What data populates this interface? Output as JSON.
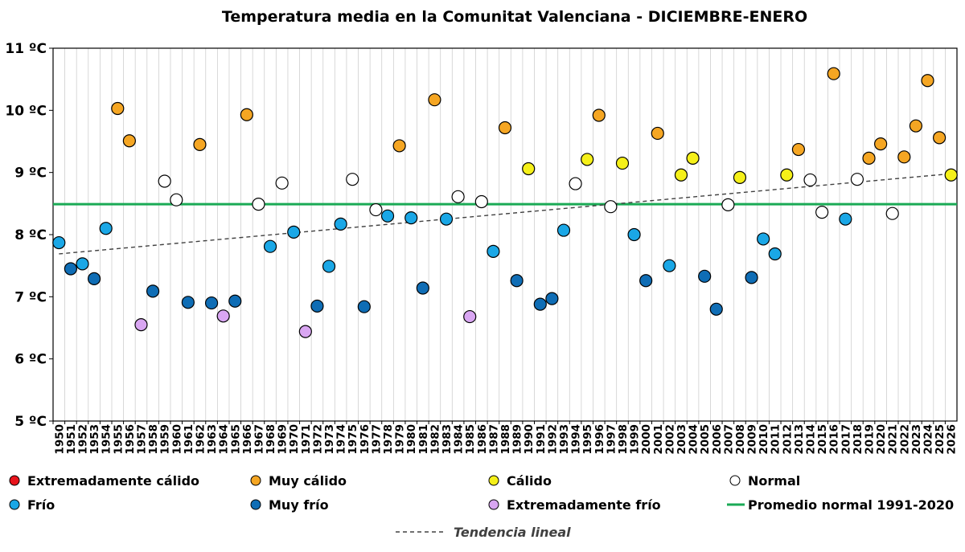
{
  "chart_data": {
    "type": "scatter",
    "title": "Temperatura media en la Comunitat Valenciana - DICIEMBRE-ENERO",
    "xlabel": "",
    "ylabel": "",
    "ylim": [
      5,
      11
    ],
    "y_ticks": [
      {
        "value": 5,
        "label": "5 ºC"
      },
      {
        "value": 6,
        "label": "6 ºC"
      },
      {
        "value": 7,
        "label": "7 ºC"
      },
      {
        "value": 8,
        "label": "8 ºC"
      },
      {
        "value": 9,
        "label": "9 ºC"
      },
      {
        "value": 10,
        "label": "10 ºC"
      },
      {
        "value": 11,
        "label": "11 ºC"
      }
    ],
    "x_labels": [
      "1950",
      "1951",
      "1952",
      "1953",
      "1954",
      "1955",
      "1956",
      "1957",
      "1958",
      "1959",
      "1960",
      "1961",
      "1962",
      "1963",
      "1964",
      "1965",
      "1966",
      "1967",
      "1968",
      "1969",
      "1970",
      "1971",
      "1972",
      "1973",
      "1974",
      "1975",
      "1976",
      "1977",
      "1978",
      "1979",
      "1980",
      "1981",
      "1982",
      "1983",
      "1984",
      "1985",
      "1986",
      "1987",
      "1988",
      "1989",
      "1990",
      "1991",
      "1992",
      "1993",
      "1994",
      "1995",
      "1996",
      "1997",
      "1998",
      "1999",
      "2000",
      "2001",
      "2002",
      "2003",
      "2004",
      "2005",
      "2006",
      "2007",
      "2008",
      "2009",
      "2010",
      "2011",
      "2012",
      "2013",
      "2014",
      "2015",
      "2016",
      "2017",
      "2018",
      "2019",
      "2020",
      "2021",
      "2022",
      "2023",
      "2024",
      "2025",
      "2026"
    ],
    "grid": "vertical",
    "categories": {
      "ext_calido": {
        "label": "Extremadamente cálido",
        "color": "#e8141c"
      },
      "muy_calido": {
        "label": "Muy cálido",
        "color": "#f5a623"
      },
      "calido": {
        "label": "Cálido",
        "color": "#f5f019"
      },
      "normal": {
        "label": "Normal",
        "color": "#ffffff"
      },
      "frio": {
        "label": "Frío",
        "color": "#1aa7e6"
      },
      "muy_frio": {
        "label": "Muy frío",
        "color": "#0f6db5"
      },
      "ext_frio": {
        "label": "Extremadamente frío",
        "color": "#d9a6f2"
      }
    },
    "points": [
      {
        "x": "1950",
        "y": 7.87,
        "cat": "frio"
      },
      {
        "x": "1951",
        "y": 7.45,
        "cat": "muy_frio"
      },
      {
        "x": "1952",
        "y": 7.53,
        "cat": "frio"
      },
      {
        "x": "1953",
        "y": 7.29,
        "cat": "muy_frio"
      },
      {
        "x": "1954",
        "y": 8.1,
        "cat": "frio"
      },
      {
        "x": "1955",
        "y": 10.03,
        "cat": "muy_calido"
      },
      {
        "x": "1956",
        "y": 9.51,
        "cat": "muy_calido"
      },
      {
        "x": "1957",
        "y": 6.55,
        "cat": "ext_frio"
      },
      {
        "x": "1958",
        "y": 7.09,
        "cat": "muy_frio"
      },
      {
        "x": "1959",
        "y": 8.86,
        "cat": "normal"
      },
      {
        "x": "1960",
        "y": 8.56,
        "cat": "normal"
      },
      {
        "x": "1961",
        "y": 6.91,
        "cat": "muy_frio"
      },
      {
        "x": "1962",
        "y": 9.45,
        "cat": "muy_calido"
      },
      {
        "x": "1963",
        "y": 6.9,
        "cat": "muy_frio"
      },
      {
        "x": "1964",
        "y": 6.69,
        "cat": "ext_frio"
      },
      {
        "x": "1965",
        "y": 6.93,
        "cat": "muy_frio"
      },
      {
        "x": "1966",
        "y": 9.93,
        "cat": "muy_calido"
      },
      {
        "x": "1967",
        "y": 8.49,
        "cat": "normal"
      },
      {
        "x": "1968",
        "y": 7.81,
        "cat": "frio"
      },
      {
        "x": "1969",
        "y": 8.83,
        "cat": "normal"
      },
      {
        "x": "1970",
        "y": 8.04,
        "cat": "frio"
      },
      {
        "x": "1971",
        "y": 6.44,
        "cat": "ext_frio"
      },
      {
        "x": "1972",
        "y": 6.85,
        "cat": "muy_frio"
      },
      {
        "x": "1973",
        "y": 7.49,
        "cat": "frio"
      },
      {
        "x": "1974",
        "y": 8.17,
        "cat": "frio"
      },
      {
        "x": "1975",
        "y": 8.89,
        "cat": "normal"
      },
      {
        "x": "1976",
        "y": 6.84,
        "cat": "muy_frio"
      },
      {
        "x": "1977",
        "y": 8.4,
        "cat": "normal"
      },
      {
        "x": "1978",
        "y": 8.3,
        "cat": "frio"
      },
      {
        "x": "1979",
        "y": 9.43,
        "cat": "muy_calido"
      },
      {
        "x": "1980",
        "y": 8.27,
        "cat": "frio"
      },
      {
        "x": "1981",
        "y": 7.14,
        "cat": "muy_frio"
      },
      {
        "x": "1982",
        "y": 10.17,
        "cat": "muy_calido"
      },
      {
        "x": "1983",
        "y": 8.25,
        "cat": "frio"
      },
      {
        "x": "1984",
        "y": 8.61,
        "cat": "normal"
      },
      {
        "x": "1985",
        "y": 6.68,
        "cat": "ext_frio"
      },
      {
        "x": "1986",
        "y": 8.53,
        "cat": "normal"
      },
      {
        "x": "1987",
        "y": 7.73,
        "cat": "frio"
      },
      {
        "x": "1988",
        "y": 9.72,
        "cat": "muy_calido"
      },
      {
        "x": "1989",
        "y": 7.26,
        "cat": "muy_frio"
      },
      {
        "x": "1990",
        "y": 9.06,
        "cat": "calido"
      },
      {
        "x": "1991",
        "y": 6.88,
        "cat": "muy_frio"
      },
      {
        "x": "1992",
        "y": 6.97,
        "cat": "muy_frio"
      },
      {
        "x": "1993",
        "y": 8.07,
        "cat": "frio"
      },
      {
        "x": "1994",
        "y": 8.82,
        "cat": "normal"
      },
      {
        "x": "1995",
        "y": 9.21,
        "cat": "calido"
      },
      {
        "x": "1996",
        "y": 9.92,
        "cat": "muy_calido"
      },
      {
        "x": "1997",
        "y": 8.45,
        "cat": "normal"
      },
      {
        "x": "1998",
        "y": 9.15,
        "cat": "calido"
      },
      {
        "x": "1999",
        "y": 8.0,
        "cat": "frio"
      },
      {
        "x": "2000",
        "y": 7.26,
        "cat": "muy_frio"
      },
      {
        "x": "2001",
        "y": 9.63,
        "cat": "muy_calido"
      },
      {
        "x": "2002",
        "y": 7.5,
        "cat": "frio"
      },
      {
        "x": "2003",
        "y": 8.96,
        "cat": "calido"
      },
      {
        "x": "2004",
        "y": 9.23,
        "cat": "calido"
      },
      {
        "x": "2005",
        "y": 7.33,
        "cat": "muy_frio"
      },
      {
        "x": "2006",
        "y": 6.8,
        "cat": "muy_frio"
      },
      {
        "x": "2007",
        "y": 8.48,
        "cat": "normal"
      },
      {
        "x": "2008",
        "y": 8.92,
        "cat": "calido"
      },
      {
        "x": "2009",
        "y": 7.31,
        "cat": "muy_frio"
      },
      {
        "x": "2010",
        "y": 7.93,
        "cat": "frio"
      },
      {
        "x": "2011",
        "y": 7.69,
        "cat": "frio"
      },
      {
        "x": "2012",
        "y": 8.96,
        "cat": "calido"
      },
      {
        "x": "2013",
        "y": 9.37,
        "cat": "muy_calido"
      },
      {
        "x": "2014",
        "y": 8.88,
        "cat": "normal"
      },
      {
        "x": "2015",
        "y": 8.36,
        "cat": "normal"
      },
      {
        "x": "2016",
        "y": 10.59,
        "cat": "muy_calido"
      },
      {
        "x": "2017",
        "y": 8.25,
        "cat": "frio"
      },
      {
        "x": "2018",
        "y": 8.89,
        "cat": "normal"
      },
      {
        "x": "2019",
        "y": 9.23,
        "cat": "muy_calido"
      },
      {
        "x": "2020",
        "y": 9.46,
        "cat": "muy_calido"
      },
      {
        "x": "2021",
        "y": 8.34,
        "cat": "normal"
      },
      {
        "x": "2022",
        "y": 9.25,
        "cat": "muy_calido"
      },
      {
        "x": "2023",
        "y": 9.75,
        "cat": "muy_calido"
      },
      {
        "x": "2024",
        "y": 10.48,
        "cat": "muy_calido"
      },
      {
        "x": "2025",
        "y": 9.56,
        "cat": "muy_calido"
      },
      {
        "x": "2026",
        "y": 8.96,
        "cat": "calido"
      }
    ],
    "reference_line": {
      "label": "Promedio normal 1991-2020",
      "value": 8.49,
      "color": "#1aaa55"
    },
    "trend": {
      "label": "Tendencia lineal",
      "start": {
        "x": "1950",
        "y": 7.69
      },
      "end": {
        "x": "2026",
        "y": 8.98
      },
      "color": "#404040"
    },
    "legend_order": [
      [
        "ext_calido",
        "muy_calido",
        "calido",
        "normal"
      ],
      [
        "frio",
        "muy_frio",
        "ext_frio",
        "reference"
      ],
      [
        "trend"
      ]
    ]
  }
}
